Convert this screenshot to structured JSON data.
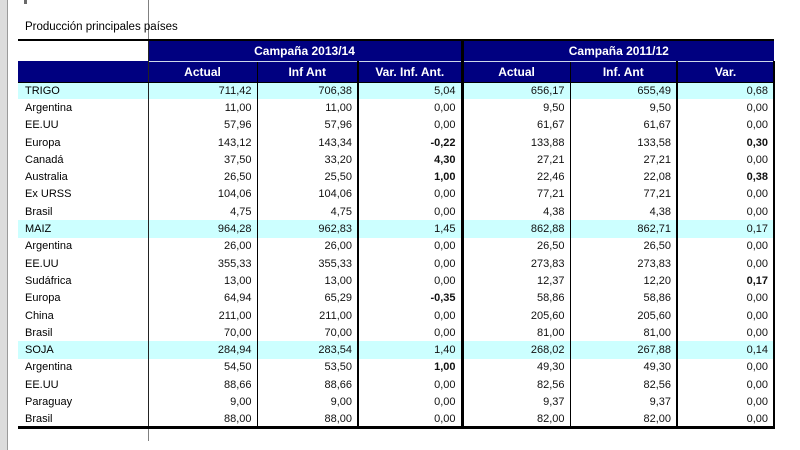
{
  "title": "Producción principales países",
  "table": {
    "corner_label": "",
    "groups": [
      {
        "label": "Campaña 2013/14",
        "columns": [
          "Actual",
          "Inf Ant",
          "Var. Inf. Ant."
        ]
      },
      {
        "label": "Campaña 2011/12",
        "columns": [
          "Actual",
          "Inf. Ant",
          "Var."
        ]
      }
    ],
    "rows": [
      {
        "label": "TRIGO",
        "group": true,
        "values": [
          "711,42",
          "706,38",
          "5,04",
          "656,17",
          "655,49",
          "0,68"
        ],
        "bold": []
      },
      {
        "label": "Argentina",
        "group": false,
        "values": [
          "11,00",
          "11,00",
          "0,00",
          "9,50",
          "9,50",
          "0,00"
        ],
        "bold": []
      },
      {
        "label": "EE.UU",
        "group": false,
        "values": [
          "57,96",
          "57,96",
          "0,00",
          "61,67",
          "61,67",
          "0,00"
        ],
        "bold": []
      },
      {
        "label": "Europa",
        "group": false,
        "values": [
          "143,12",
          "143,34",
          "-0,22",
          "133,88",
          "133,58",
          "0,30"
        ],
        "bold": [
          2,
          5
        ]
      },
      {
        "label": "Canadá",
        "group": false,
        "values": [
          "37,50",
          "33,20",
          "4,30",
          "27,21",
          "27,21",
          "0,00"
        ],
        "bold": [
          2
        ]
      },
      {
        "label": "Australia",
        "group": false,
        "values": [
          "26,50",
          "25,50",
          "1,00",
          "22,46",
          "22,08",
          "0,38"
        ],
        "bold": [
          2,
          5
        ]
      },
      {
        "label": "Ex URSS",
        "group": false,
        "values": [
          "104,06",
          "104,06",
          "0,00",
          "77,21",
          "77,21",
          "0,00"
        ],
        "bold": []
      },
      {
        "label": "Brasil",
        "group": false,
        "values": [
          "4,75",
          "4,75",
          "0,00",
          "4,38",
          "4,38",
          "0,00"
        ],
        "bold": []
      },
      {
        "label": "MAIZ",
        "group": true,
        "values": [
          "964,28",
          "962,83",
          "1,45",
          "862,88",
          "862,71",
          "0,17"
        ],
        "bold": []
      },
      {
        "label": "Argentina",
        "group": false,
        "values": [
          "26,00",
          "26,00",
          "0,00",
          "26,50",
          "26,50",
          "0,00"
        ],
        "bold": []
      },
      {
        "label": "EE.UU",
        "group": false,
        "values": [
          "355,33",
          "355,33",
          "0,00",
          "273,83",
          "273,83",
          "0,00"
        ],
        "bold": []
      },
      {
        "label": "Sudáfrica",
        "group": false,
        "values": [
          "13,00",
          "13,00",
          "0,00",
          "12,37",
          "12,20",
          "0,17"
        ],
        "bold": [
          5
        ]
      },
      {
        "label": "Europa",
        "group": false,
        "values": [
          "64,94",
          "65,29",
          "-0,35",
          "58,86",
          "58,86",
          "0,00"
        ],
        "bold": [
          2
        ]
      },
      {
        "label": "China",
        "group": false,
        "values": [
          "211,00",
          "211,00",
          "0,00",
          "205,60",
          "205,60",
          "0,00"
        ],
        "bold": []
      },
      {
        "label": "Brasil",
        "group": false,
        "values": [
          "70,00",
          "70,00",
          "0,00",
          "81,00",
          "81,00",
          "0,00"
        ],
        "bold": []
      },
      {
        "label": "SOJA",
        "group": true,
        "values": [
          "284,94",
          "283,54",
          "1,40",
          "268,02",
          "267,88",
          "0,14"
        ],
        "bold": []
      },
      {
        "label": "Argentina",
        "group": false,
        "values": [
          "54,50",
          "53,50",
          "1,00",
          "49,30",
          "49,30",
          "0,00"
        ],
        "bold": [
          2
        ]
      },
      {
        "label": "EE.UU",
        "group": false,
        "values": [
          "88,66",
          "88,66",
          "0,00",
          "82,56",
          "82,56",
          "0,00"
        ],
        "bold": []
      },
      {
        "label": "Paraguay",
        "group": false,
        "values": [
          "9,00",
          "9,00",
          "0,00",
          "9,37",
          "9,37",
          "0,00"
        ],
        "bold": []
      },
      {
        "label": "Brasil",
        "group": false,
        "values": [
          "88,00",
          "88,00",
          "0,00",
          "82,00",
          "82,00",
          "0,00"
        ],
        "bold": []
      }
    ]
  },
  "colors": {
    "header_bg": "#000080",
    "header_text": "#FFFFFF",
    "highlight_row_bg": "#CCFFFF",
    "border": "#000000"
  }
}
